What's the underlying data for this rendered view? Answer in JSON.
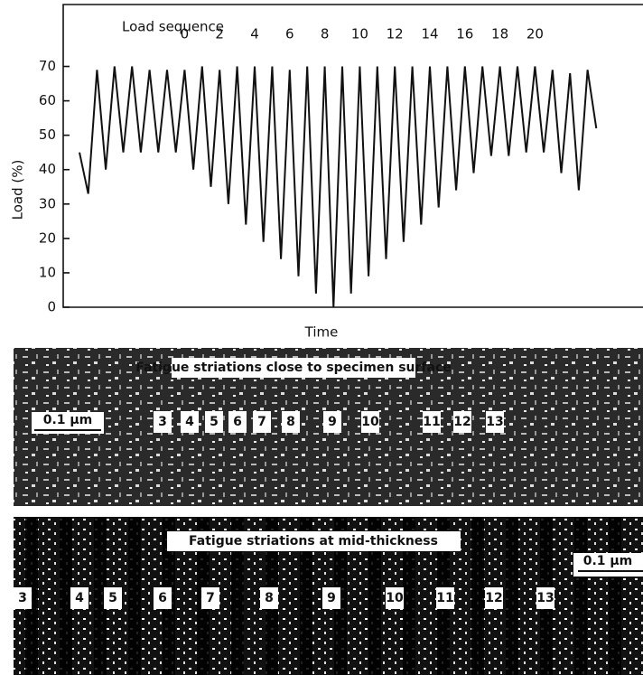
{
  "chart_data": {
    "type": "line",
    "title": "Load sequence",
    "xlabel": "Time",
    "ylabel": "Load (%)",
    "ylim": [
      0,
      88
    ],
    "yticks": [
      0,
      10,
      20,
      30,
      40,
      50,
      60,
      70
    ],
    "series": [
      {
        "color": "#111111",
        "values": [
          45,
          33,
          69,
          40,
          70,
          45,
          70,
          45,
          69,
          45,
          69,
          45,
          69,
          40,
          70,
          35,
          69,
          30,
          70,
          24,
          70,
          19,
          70,
          14,
          69,
          9,
          70,
          4,
          70,
          0,
          70,
          4,
          70,
          9,
          70,
          14,
          70,
          19,
          70,
          24,
          70,
          29,
          70,
          34,
          70,
          39,
          70,
          44,
          70,
          44,
          70,
          45,
          70,
          45,
          69,
          39,
          68,
          34,
          69,
          52
        ]
      }
    ],
    "load_sequence": [
      0,
      2,
      4,
      6,
      8,
      10,
      12,
      14,
      16,
      18,
      20
    ]
  },
  "micrographs": [
    {
      "caption": "Fatigue striations close to specimen surface",
      "scale": "0.1 μm",
      "striations": [
        "3",
        "4",
        "5",
        "6",
        "7",
        "8",
        "9",
        "10",
        "11",
        "12",
        "13"
      ]
    },
    {
      "caption": "Fatigue striations at mid-thickness",
      "scale": "0.1 μm",
      "striations": [
        "3",
        "4",
        "5",
        "6",
        "7",
        "8",
        "9",
        "10",
        "11",
        "12",
        "13"
      ]
    }
  ]
}
